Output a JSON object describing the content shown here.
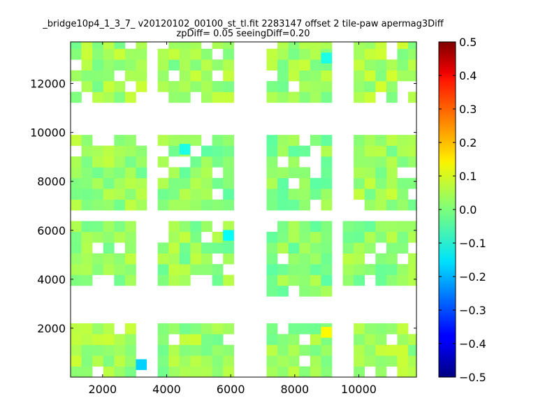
{
  "chart_data": {
    "type": "heatmap",
    "title_line1": "_bridge10p4_1_3_7_ v20120102_00100_st_tl.fit 2283147 offset 2 tile-paw apermag3Diff",
    "title_line2": "zpDiff= 0.05 seeingDiff=0.20",
    "xlabel": "",
    "ylabel": "",
    "xlim": [
      1000,
      11800
    ],
    "ylim": [
      0,
      13700
    ],
    "xticks": [
      2000,
      4000,
      6000,
      8000,
      10000
    ],
    "xtick_labels": [
      "2000",
      "4000",
      "6000",
      "8000",
      "10000"
    ],
    "yticks": [
      2000,
      4000,
      6000,
      8000,
      10000,
      12000
    ],
    "ytick_labels": [
      "2000",
      "4000",
      "6000",
      "8000",
      "10000",
      "12000"
    ],
    "cell_size": [
      340,
      440
    ],
    "colormap": "jet",
    "color_range": [
      -0.5,
      0.5
    ],
    "colorbar_ticks": [
      0.5,
      0.4,
      0.3,
      0.2,
      0.1,
      0.0,
      -0.1,
      -0.2,
      -0.3,
      -0.4,
      -0.5
    ],
    "colorbar_tick_labels": [
      "0.5",
      "0.4",
      "0.3",
      "0.2",
      "0.1",
      "0.0",
      "−0.1",
      "−0.2",
      "−0.3",
      "−0.4",
      "−0.5"
    ],
    "grid": false,
    "blocks": [
      {
        "x": [
          1000,
          3040
        ],
        "y": [
          0,
          2200
        ],
        "base": 0.03
      },
      {
        "x": [
          3720,
          6100
        ],
        "y": [
          0,
          2200
        ],
        "base": 0.03
      },
      {
        "x": [
          7120,
          9160
        ],
        "y": [
          0,
          2200
        ],
        "base": 0.02
      },
      {
        "x": [
          9840,
          11800
        ],
        "y": [
          0,
          2200
        ],
        "base": 0.03
      },
      {
        "x": [
          1000,
          3040
        ],
        "y": [
          3740,
          6380
        ],
        "base": 0.02
      },
      {
        "x": [
          3720,
          6100
        ],
        "y": [
          3740,
          6380
        ],
        "base": 0.02
      },
      {
        "x": [
          7120,
          9160
        ],
        "y": [
          3300,
          6380
        ],
        "base": 0.01
      },
      {
        "x": [
          9500,
          11800
        ],
        "y": [
          3740,
          6380
        ],
        "base": 0.02
      },
      {
        "x": [
          1000,
          3380
        ],
        "y": [
          6820,
          9900
        ],
        "base": 0.02
      },
      {
        "x": [
          3720,
          6100
        ],
        "y": [
          6820,
          9900
        ],
        "base": 0.01
      },
      {
        "x": [
          7120,
          9160
        ],
        "y": [
          6820,
          9900
        ],
        "base": 0.01
      },
      {
        "x": [
          9840,
          11800
        ],
        "y": [
          6820,
          9900
        ],
        "base": 0.03
      },
      {
        "x": [
          1000,
          3380
        ],
        "y": [
          11220,
          13860
        ],
        "base": 0.03
      },
      {
        "x": [
          3720,
          6100
        ],
        "y": [
          11220,
          13860
        ],
        "base": 0.03
      },
      {
        "x": [
          7120,
          9160
        ],
        "y": [
          11220,
          13860
        ],
        "base": 0.03
      },
      {
        "x": [
          9840,
          11800
        ],
        "y": [
          11220,
          13860
        ],
        "base": 0.04
      }
    ],
    "highlights": [
      {
        "x": 3210,
        "y": 510,
        "value": -0.17
      },
      {
        "x": 8990,
        "y": 1830,
        "value": 0.13
      },
      {
        "x": 5930,
        "y": 5790,
        "value": -0.12
      },
      {
        "x": 8990,
        "y": 13040,
        "value": -0.1
      },
      {
        "x": 4570,
        "y": 9310,
        "value": -0.1
      }
    ]
  }
}
